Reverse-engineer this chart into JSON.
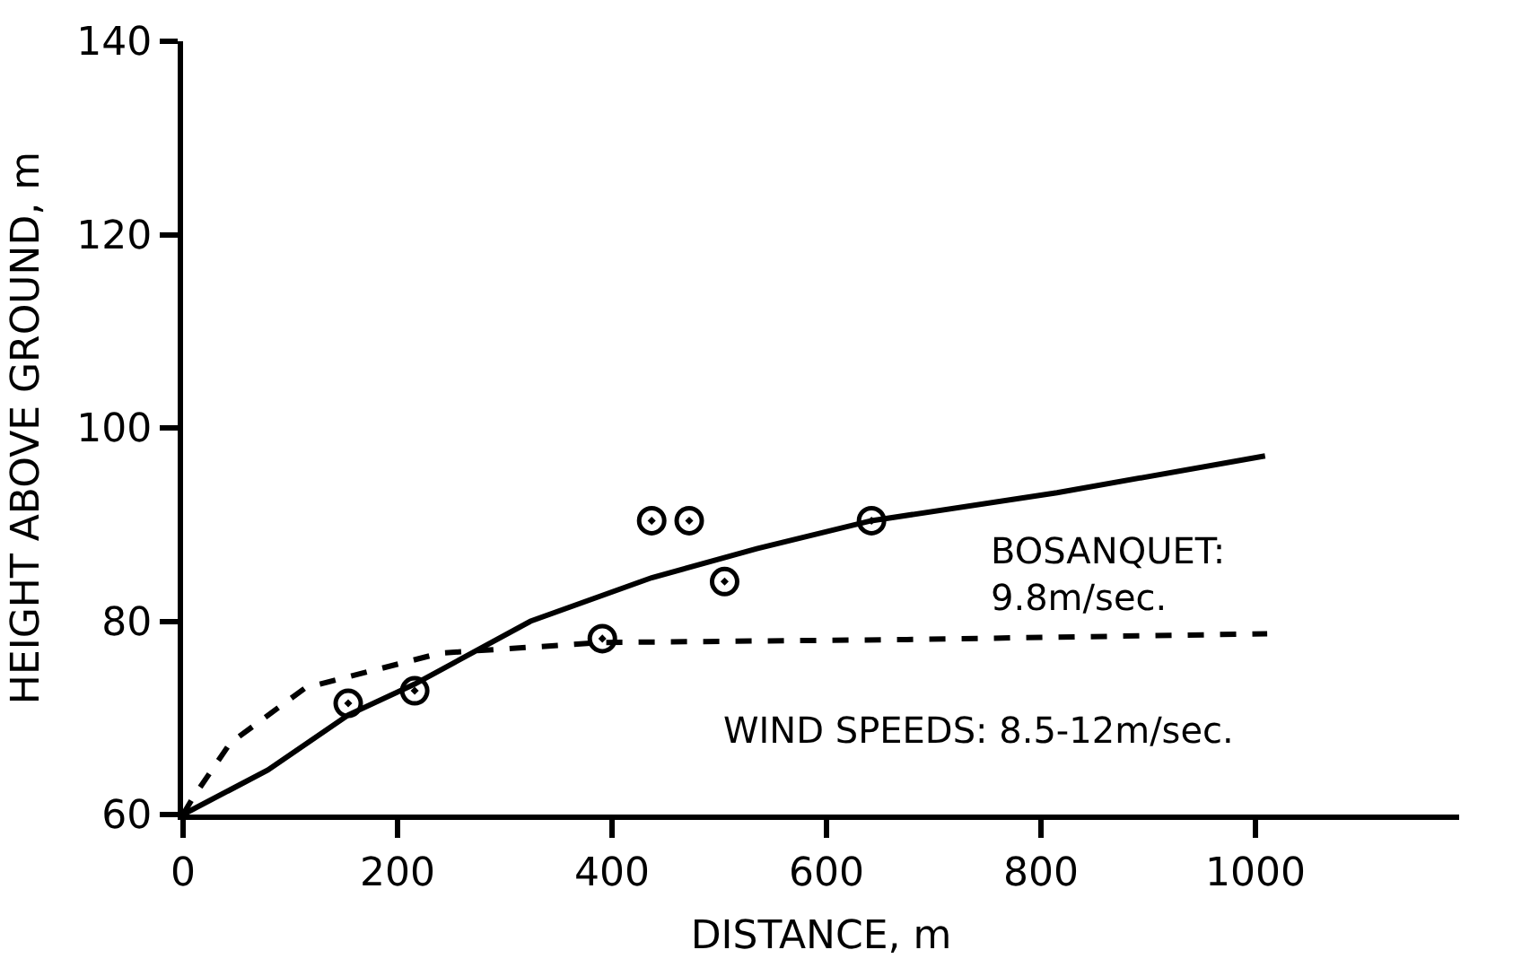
{
  "chart_data": {
    "type": "line",
    "xlabel": "DISTANCE, m",
    "ylabel": "HEIGHT ABOVE GROUND, m",
    "xlim": [
      0,
      1190
    ],
    "ylim": [
      60,
      140
    ],
    "xticks": [
      0,
      200,
      400,
      600,
      800,
      1000
    ],
    "yticks": [
      60,
      80,
      100,
      120,
      140
    ],
    "series": [
      {
        "type": "scatter",
        "marker": "circle",
        "color": "#000000",
        "x": [
          154,
          216,
          391,
          437,
          472,
          505,
          642
        ],
        "values": [
          71.5,
          72.8,
          78.2,
          90.4,
          90.4,
          84.1,
          90.4
        ]
      },
      {
        "line_style": "solid",
        "color": "#000000",
        "x": [
          0,
          79,
          154,
          216,
          324,
          437,
          535,
          642,
          815,
          1009
        ],
        "values": [
          60,
          64.6,
          70.3,
          73.5,
          80,
          84.5,
          87.5,
          90.4,
          93.3,
          97.1
        ]
      },
      {
        "line_style": "dashed",
        "color": "#000000",
        "x": [
          0,
          9,
          44,
          114,
          240,
          391,
          675,
          1011
        ],
        "values": [
          60,
          61.7,
          67.4,
          73.1,
          76.7,
          77.8,
          78.1,
          78.7
        ]
      }
    ],
    "annotations": [
      "BOSANQUET:\n9.8m/sec.",
      "WIND SPEEDS: 8.5-12m/sec."
    ]
  }
}
